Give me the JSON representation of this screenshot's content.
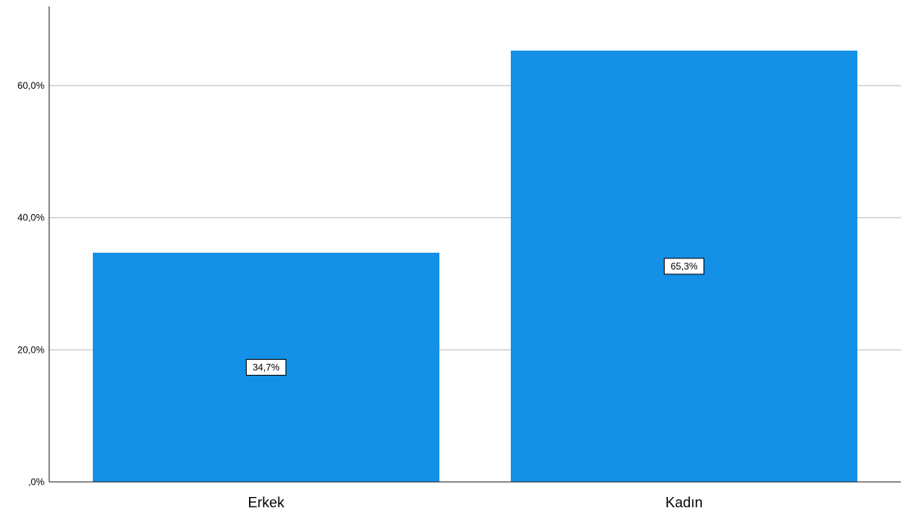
{
  "chart_data": {
    "type": "bar",
    "title": "",
    "xlabel": "",
    "ylabel": "",
    "categories": [
      "Erkek",
      "Kadın"
    ],
    "values": [
      34.7,
      65.3
    ],
    "data_labels": [
      "34,7%",
      "65,3%"
    ],
    "ylim": [
      0,
      72
    ],
    "yticks": [
      0,
      20,
      40,
      60
    ],
    "ytick_labels": [
      ",0%",
      "20,0%",
      "40,0%",
      "60,0%"
    ],
    "grid": true,
    "legend": "none",
    "bar_color": "#1490e6",
    "grid_color": "#cfcfcf",
    "axis_color": "#222222"
  }
}
